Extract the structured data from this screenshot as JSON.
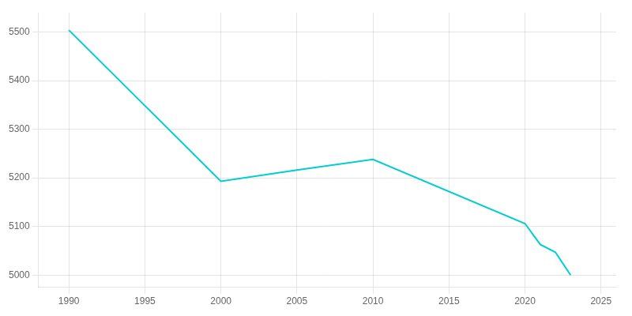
{
  "chart_data": {
    "type": "line",
    "x": [
      1990,
      2000,
      2005,
      2010,
      2020,
      2021,
      2022,
      2023
    ],
    "values": [
      5504,
      5193,
      5216,
      5238,
      5106,
      5063,
      5047,
      5000
    ],
    "color": "#00CED1",
    "xlim": [
      1988,
      2026
    ],
    "xticks": [
      1990,
      1995,
      2000,
      2005,
      2010,
      2015,
      2020,
      2025
    ],
    "ylim": [
      4975,
      5540
    ],
    "yticks": [
      5000,
      5100,
      5200,
      5300,
      5400,
      5500
    ],
    "grid": true
  }
}
